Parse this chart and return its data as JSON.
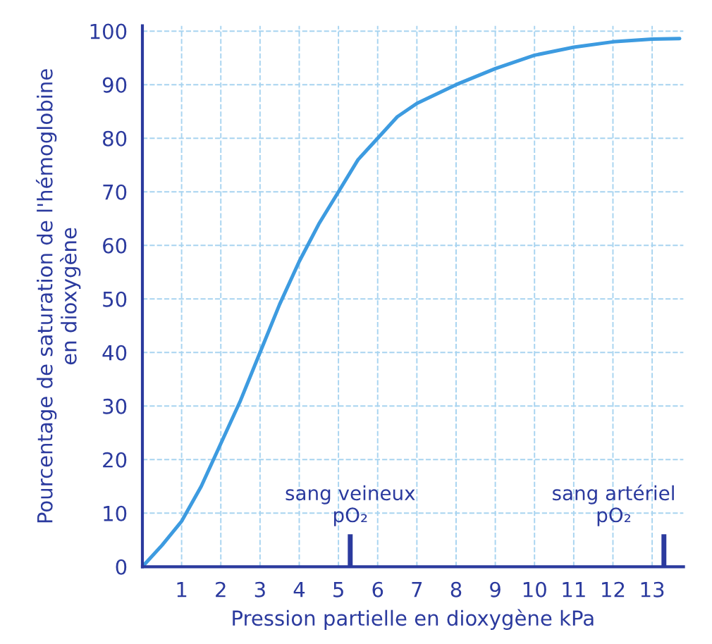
{
  "chart_data": {
    "type": "line",
    "xlabel": "Pression partielle en dioxygène kPa",
    "ylabel": "Pourcentage de saturation de l'hémoglobine\nen dioxygène",
    "x": [
      0,
      0.5,
      1,
      1.5,
      2,
      2.5,
      3,
      3.5,
      4,
      4.5,
      5,
      5.5,
      6,
      6.5,
      7,
      8,
      9,
      10,
      11,
      12,
      13,
      13.7
    ],
    "series": [
      {
        "color": "#3d9be0",
        "values": [
          0,
          4,
          8.5,
          15,
          23,
          31,
          40,
          49,
          57,
          64,
          70,
          76,
          80,
          84,
          86.5,
          90,
          93,
          95.5,
          97,
          98,
          98.5,
          98.6
        ]
      }
    ],
    "xlim": [
      0,
      13.8
    ],
    "ylim": [
      0,
      101
    ],
    "xticks": [
      {
        "value": 0,
        "label": null
      },
      1,
      2,
      3,
      4,
      5,
      6,
      7,
      8,
      9,
      10,
      11,
      12,
      13
    ],
    "yticks": [
      0,
      10,
      20,
      30,
      40,
      50,
      60,
      70,
      80,
      90,
      100
    ],
    "grid": true,
    "marker": "none",
    "line_style": "solid",
    "ref_lines": [
      {
        "axis": "x",
        "value": 5.3,
        "label": "sang veineux\npO₂"
      },
      {
        "axis": "x",
        "value": 13.3,
        "label": "sang artériel\npO₂"
      }
    ]
  }
}
